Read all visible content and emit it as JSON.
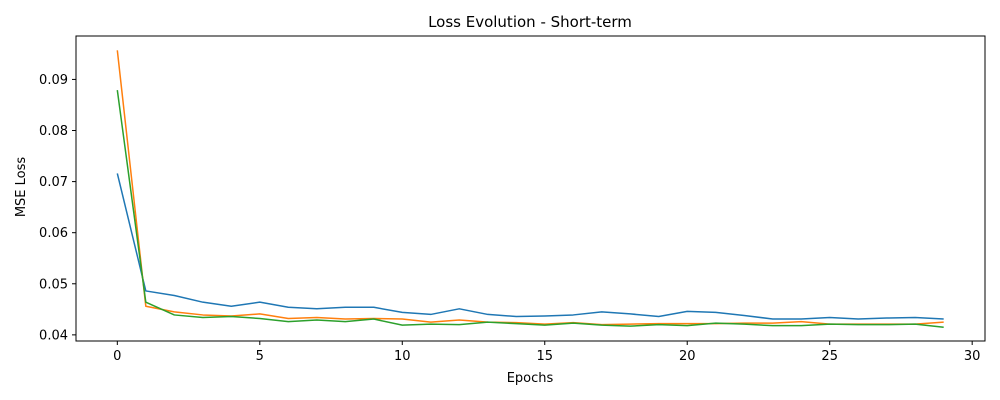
{
  "chart_data": {
    "type": "line",
    "title": "Loss Evolution - Short-term",
    "xlabel": "Epochs",
    "ylabel": "MSE Loss",
    "xlim": [
      -1.45,
      30.45
    ],
    "ylim": [
      0.0388,
      0.0985
    ],
    "xticks": [
      0,
      5,
      10,
      15,
      20,
      25,
      30
    ],
    "xtick_labels": [
      "0",
      "5",
      "10",
      "15",
      "20",
      "25",
      "30"
    ],
    "yticks": [
      0.04,
      0.05,
      0.06,
      0.07,
      0.08,
      0.09
    ],
    "ytick_labels": [
      "0.04",
      "0.05",
      "0.06",
      "0.07",
      "0.08",
      "0.09"
    ],
    "grid": false,
    "legend": "none",
    "x": [
      0,
      1,
      2,
      3,
      4,
      5,
      6,
      7,
      8,
      9,
      10,
      11,
      12,
      13,
      14,
      15,
      16,
      17,
      18,
      19,
      20,
      21,
      22,
      23,
      24,
      25,
      26,
      27,
      28,
      29
    ],
    "series": [
      {
        "color": "#1f77b4",
        "values": [
          0.0716,
          0.0486,
          0.0477,
          0.0464,
          0.0456,
          0.0464,
          0.0454,
          0.0451,
          0.0454,
          0.0454,
          0.0444,
          0.044,
          0.0451,
          0.044,
          0.0436,
          0.0437,
          0.0439,
          0.0445,
          0.0441,
          0.0436,
          0.0446,
          0.0444,
          0.0438,
          0.0431,
          0.0431,
          0.0434,
          0.0431,
          0.0433,
          0.0434,
          0.0431
        ]
      },
      {
        "color": "#ff7f0e",
        "values": [
          0.0957,
          0.0456,
          0.0445,
          0.0439,
          0.0437,
          0.0441,
          0.0432,
          0.0434,
          0.0431,
          0.0432,
          0.0431,
          0.0425,
          0.0429,
          0.0425,
          0.0424,
          0.0421,
          0.0424,
          0.042,
          0.0421,
          0.0422,
          0.0422,
          0.0422,
          0.0423,
          0.0423,
          0.0426,
          0.0421,
          0.0421,
          0.0421,
          0.0421,
          0.0425
        ]
      },
      {
        "color": "#2ca02c",
        "values": [
          0.0879,
          0.0464,
          0.0439,
          0.0434,
          0.0436,
          0.0432,
          0.0426,
          0.0429,
          0.0426,
          0.0431,
          0.0419,
          0.0421,
          0.042,
          0.0425,
          0.0422,
          0.0419,
          0.0423,
          0.0419,
          0.0417,
          0.042,
          0.0418,
          0.0423,
          0.0421,
          0.0418,
          0.0418,
          0.0421,
          0.042,
          0.042,
          0.0421,
          0.0415
        ]
      }
    ]
  }
}
